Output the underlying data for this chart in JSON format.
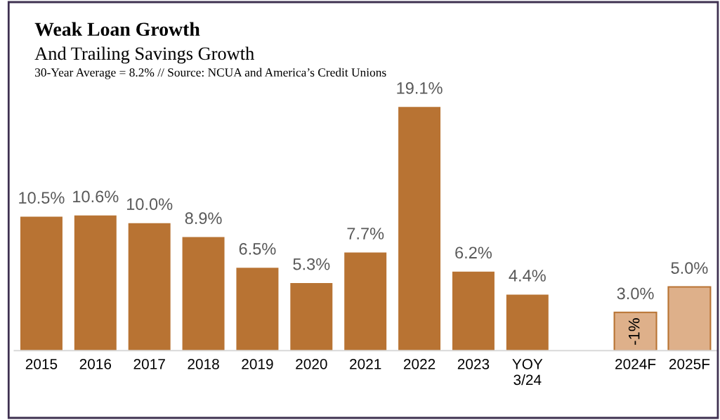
{
  "chart_data": {
    "type": "bar",
    "title": "Weak Loan Growth",
    "subtitle": "And Trailing Savings Growth",
    "annotations": [
      "30-Year Average = 8.2% // Source: NCUA and America’s Credit Unions",
      "-1%"
    ],
    "categories": [
      "2015",
      "2016",
      "2017",
      "2018",
      "2019",
      "2020",
      "2021",
      "2022",
      "2023",
      "YOY\n3/24",
      null,
      "2024F",
      "2025F"
    ],
    "values": [
      10.5,
      10.6,
      10.0,
      8.9,
      6.5,
      5.3,
      7.7,
      19.1,
      6.2,
      4.4,
      null,
      3.0,
      5.0
    ],
    "colors": [
      "#b87333",
      "#b87333",
      "#b87333",
      "#b87333",
      "#b87333",
      "#b87333",
      "#b87333",
      "#b87333",
      "#b87333",
      "#b87333",
      "#b87333",
      "#deb08a",
      "#deb08a"
    ],
    "value_labels": [
      "10.5%",
      "10.6%",
      "10.0%",
      "8.9%",
      "6.5%",
      "5.3%",
      "7.7%",
      "19.1%",
      "6.2%",
      "4.4%",
      null,
      "3.0%",
      "5.0%"
    ],
    "grid": false,
    "legend": false
  }
}
